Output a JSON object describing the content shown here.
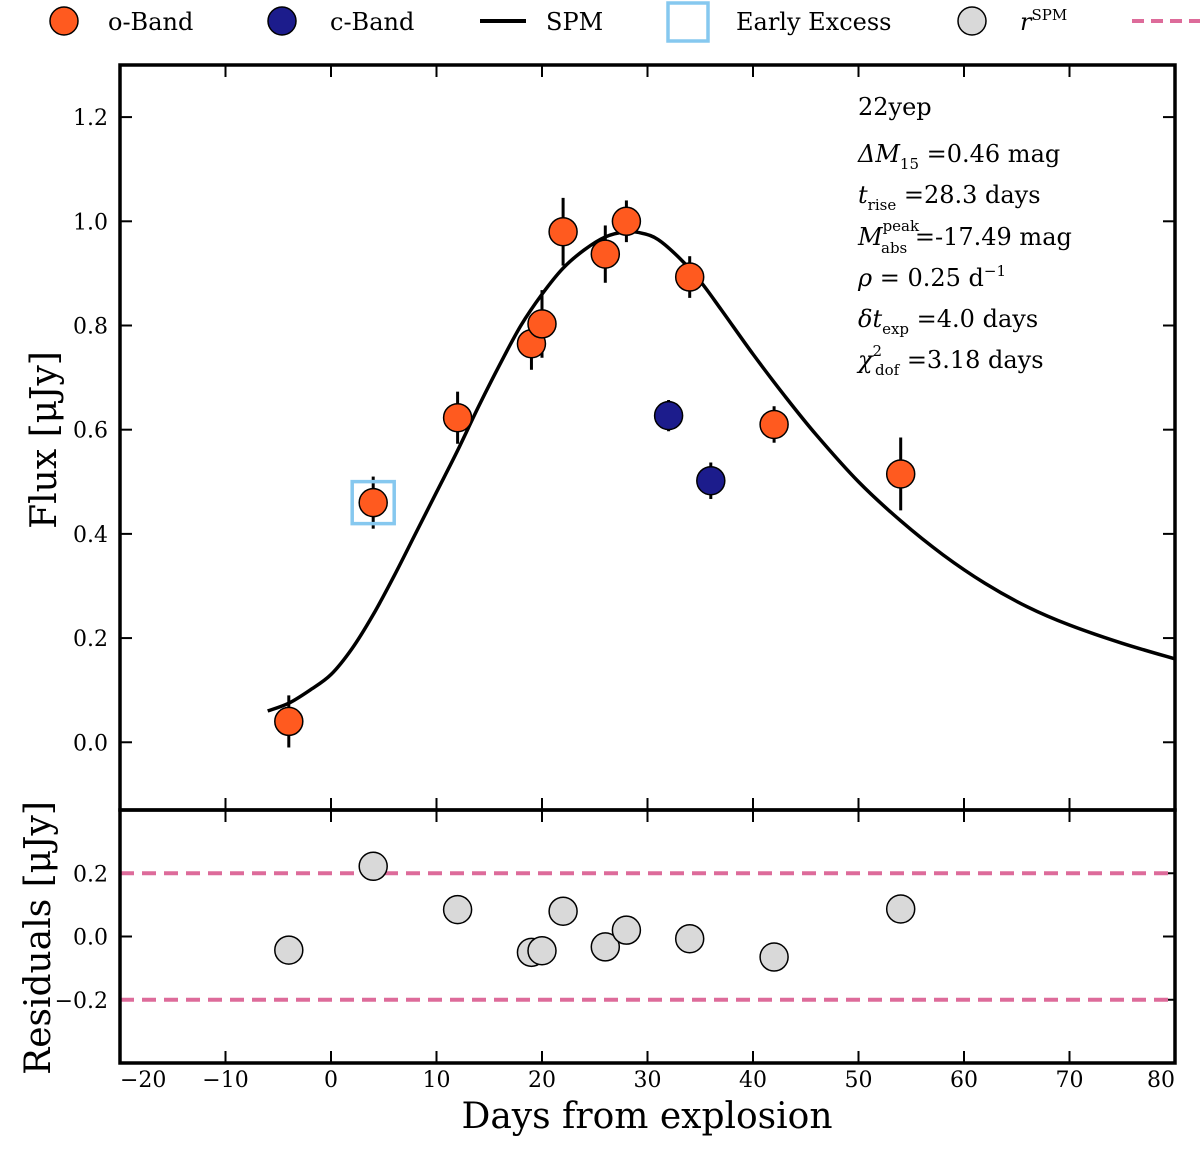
{
  "chart_data": {
    "type": "scatter",
    "legend": [
      {
        "key": "o",
        "label": "o-Band",
        "color": "#ff5a1f",
        "marker": "circle"
      },
      {
        "key": "c",
        "label": "c-Band",
        "color": "#1c1c8c",
        "marker": "circle"
      },
      {
        "key": "spm",
        "label": "SPM",
        "color": "#000000",
        "marker": "line"
      },
      {
        "key": "excess",
        "label": "Early Excess",
        "color": "#86c8ef",
        "marker": "square"
      },
      {
        "key": "res",
        "label": "r",
        "label_sup": "SPM",
        "color": "#d9d9d9",
        "marker": "circle"
      },
      {
        "key": "thresh",
        "label": "",
        "color": "#dd6b9a",
        "marker": "dashed"
      }
    ],
    "annotation": {
      "name": "22yep",
      "dm15": {
        "sym": "ΔM",
        "sub": "15",
        "rest": " =0.46 mag"
      },
      "trise": {
        "sym": "t",
        "sub": "rise",
        "rest": " =28.3 days"
      },
      "mabs": {
        "sym": "M",
        "sub": "abs",
        "sup": "peak",
        "rest": " =-17.49 mag"
      },
      "rho": {
        "sym": "ρ",
        "rest": " = 0.25 d",
        "sup": "−1"
      },
      "dtexp": {
        "sym": "δt",
        "sub": "exp",
        "rest": " =4.0 days"
      },
      "chi2": {
        "sym": "χ",
        "sub": "dof",
        "sup": "2",
        "rest": " =3.18 days"
      }
    },
    "top_panel": {
      "ylabel": "Flux [μJy]",
      "xlim": [
        -20,
        80
      ],
      "ylim": [
        -0.13,
        1.3
      ],
      "yticks": [
        0.0,
        0.2,
        0.4,
        0.6,
        0.8,
        1.0,
        1.2
      ],
      "ytick_labels": [
        "0.0",
        "0.2",
        "0.4",
        "0.6",
        "0.8",
        "1.0",
        "1.2"
      ],
      "o_band": [
        {
          "x": -4,
          "y": 0.04,
          "err": 0.05
        },
        {
          "x": 4,
          "y": 0.46,
          "err": 0.05
        },
        {
          "x": 12,
          "y": 0.623,
          "err": 0.05
        },
        {
          "x": 19,
          "y": 0.765,
          "err": 0.05
        },
        {
          "x": 20,
          "y": 0.803,
          "err": 0.065
        },
        {
          "x": 22,
          "y": 0.98,
          "err": 0.065
        },
        {
          "x": 26,
          "y": 0.937,
          "err": 0.055
        },
        {
          "x": 28,
          "y": 1.0,
          "err": 0.04
        },
        {
          "x": 34,
          "y": 0.893,
          "err": 0.04
        },
        {
          "x": 42,
          "y": 0.61,
          "err": 0.035
        },
        {
          "x": 54,
          "y": 0.515,
          "err": 0.07
        }
      ],
      "c_band": [
        {
          "x": 32,
          "y": 0.627,
          "err": 0.03
        },
        {
          "x": 36,
          "y": 0.502,
          "err": 0.035
        }
      ],
      "early_excess": [
        {
          "x": 4,
          "y": 0.46
        }
      ],
      "spm_curve": {
        "x": [
          -6,
          -4,
          -2,
          0,
          2,
          4,
          6,
          8,
          10,
          12,
          14,
          16,
          18,
          20,
          22,
          24,
          26,
          28,
          29.5,
          31,
          33,
          35,
          37,
          40,
          43,
          46,
          50,
          54,
          58,
          62,
          66,
          70,
          75,
          80
        ],
        "y": [
          0.06,
          0.075,
          0.1,
          0.13,
          0.18,
          0.245,
          0.32,
          0.4,
          0.48,
          0.56,
          0.645,
          0.725,
          0.8,
          0.86,
          0.91,
          0.945,
          0.97,
          0.98,
          0.977,
          0.965,
          0.93,
          0.885,
          0.83,
          0.745,
          0.665,
          0.59,
          0.5,
          0.425,
          0.36,
          0.305,
          0.26,
          0.225,
          0.19,
          0.16
        ]
      }
    },
    "bottom_panel": {
      "ylabel": "Residuals [μJy]",
      "xlabel": "Days from explosion",
      "xlim": [
        -20,
        80
      ],
      "ylim": [
        -0.4,
        0.4
      ],
      "yticks": [
        -0.2,
        0.0,
        0.2
      ],
      "ytick_labels": [
        "−0.2",
        "0.0",
        "0.2"
      ],
      "xticks": [
        -20,
        -10,
        0,
        10,
        20,
        30,
        40,
        50,
        60,
        70,
        80
      ],
      "xtick_labels": [
        "−20",
        "−10",
        "0",
        "10",
        "20",
        "30",
        "40",
        "50",
        "60",
        "70",
        "80"
      ],
      "thresholds": [
        0.2,
        -0.2
      ],
      "residuals": [
        {
          "x": -4,
          "y": -0.043
        },
        {
          "x": 4,
          "y": 0.222
        },
        {
          "x": 12,
          "y": 0.085
        },
        {
          "x": 19,
          "y": -0.05
        },
        {
          "x": 20,
          "y": -0.045
        },
        {
          "x": 22,
          "y": 0.08
        },
        {
          "x": 26,
          "y": -0.033
        },
        {
          "x": 28,
          "y": 0.02
        },
        {
          "x": 34,
          "y": -0.007
        },
        {
          "x": 42,
          "y": -0.065
        },
        {
          "x": 54,
          "y": 0.087
        }
      ]
    }
  }
}
